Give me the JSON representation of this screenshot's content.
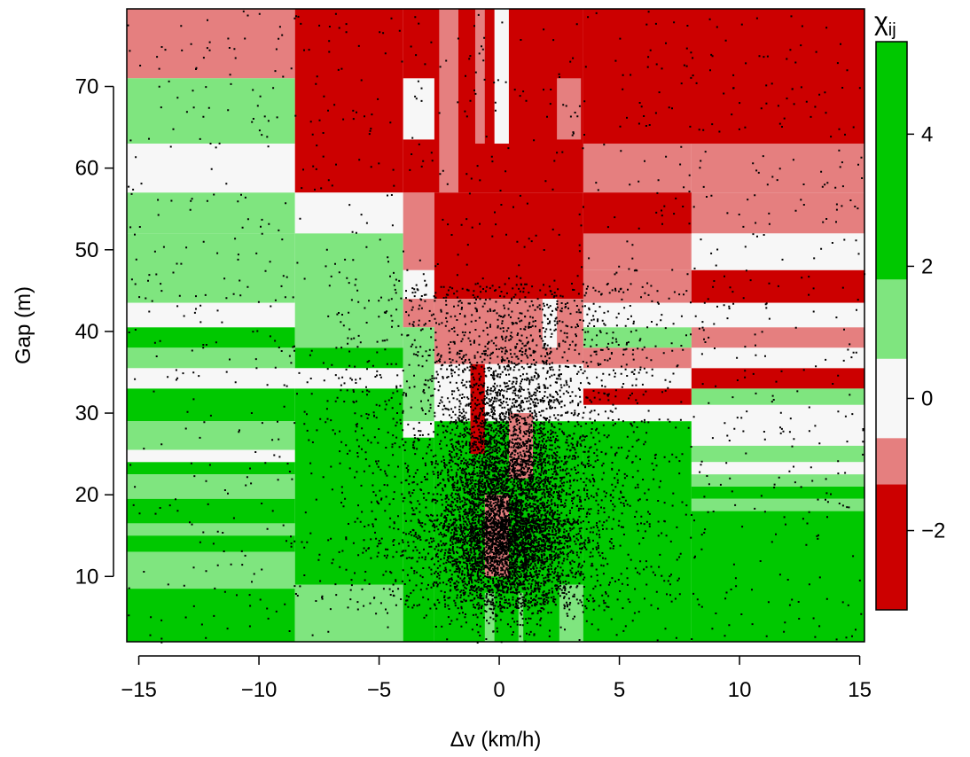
{
  "chart_data": {
    "type": "heatmap",
    "xlabel": "Δv (km/h)",
    "ylabel": "Gap (m)",
    "xlim": [
      -15.5,
      15.2
    ],
    "ylim": [
      2.0,
      79.5
    ],
    "x_ticks": [
      -15,
      -10,
      -5,
      0,
      5,
      10,
      15
    ],
    "x_tick_labels": [
      "−15",
      "−10",
      "−5",
      "0",
      "5",
      "10",
      "15"
    ],
    "y_ticks": [
      10,
      20,
      30,
      40,
      50,
      60,
      70
    ],
    "y_tick_labels": [
      "10",
      "20",
      "30",
      "40",
      "50",
      "60",
      "70"
    ],
    "legend": {
      "title": "χij",
      "title_main": "χ",
      "title_sub": "ij",
      "placement": "right",
      "ticks": [
        -2,
        0,
        2,
        4
      ],
      "tick_labels": [
        "−2",
        "0",
        "2",
        "4"
      ],
      "range": [
        -3.2,
        5.4
      ],
      "bands": [
        {
          "from": -3.2,
          "to": -1.3,
          "color": "#cc0000"
        },
        {
          "from": -1.3,
          "to": -0.6,
          "color": "#e57f7f"
        },
        {
          "from": -0.6,
          "to": 0.6,
          "color": "#f7f7f7"
        },
        {
          "from": 0.6,
          "to": 1.8,
          "color": "#7fe57f"
        },
        {
          "from": 1.8,
          "to": 5.4,
          "color": "#00c800"
        }
      ]
    },
    "colors": {
      "dark_red": "#cc0000",
      "light_red": "#e57f7f",
      "white": "#f7f7f7",
      "light_green": "#7fe57f",
      "green": "#00c800",
      "points": "#000000"
    },
    "cells": [
      {
        "x": [
          -15.5,
          -8.5
        ],
        "y": [
          71.0,
          79.5
        ],
        "c": "light_red"
      },
      {
        "x": [
          -15.5,
          -8.5
        ],
        "y": [
          63.0,
          71.0
        ],
        "c": "light_green"
      },
      {
        "x": [
          -15.5,
          -8.5
        ],
        "y": [
          57.0,
          63.0
        ],
        "c": "white"
      },
      {
        "x": [
          -15.5,
          -8.5
        ],
        "y": [
          52.0,
          57.0
        ],
        "c": "light_green"
      },
      {
        "x": [
          -15.5,
          -8.5
        ],
        "y": [
          43.5,
          52.0
        ],
        "c": "light_green"
      },
      {
        "x": [
          -15.5,
          -8.5
        ],
        "y": [
          40.5,
          43.5
        ],
        "c": "white"
      },
      {
        "x": [
          -15.5,
          -8.5
        ],
        "y": [
          38.0,
          40.5
        ],
        "c": "green"
      },
      {
        "x": [
          -15.5,
          -8.5
        ],
        "y": [
          35.5,
          38.0
        ],
        "c": "light_green"
      },
      {
        "x": [
          -15.5,
          -8.5
        ],
        "y": [
          33.0,
          35.5
        ],
        "c": "white"
      },
      {
        "x": [
          -15.5,
          -8.5
        ],
        "y": [
          29.0,
          33.0
        ],
        "c": "green"
      },
      {
        "x": [
          -15.5,
          -8.5
        ],
        "y": [
          25.5,
          29.0
        ],
        "c": "light_green"
      },
      {
        "x": [
          -15.5,
          -8.5
        ],
        "y": [
          24.0,
          25.5
        ],
        "c": "white"
      },
      {
        "x": [
          -15.5,
          -8.5
        ],
        "y": [
          22.5,
          24.0
        ],
        "c": "green"
      },
      {
        "x": [
          -15.5,
          -8.5
        ],
        "y": [
          19.5,
          22.5
        ],
        "c": "light_green"
      },
      {
        "x": [
          -15.5,
          -8.5
        ],
        "y": [
          16.5,
          19.5
        ],
        "c": "green"
      },
      {
        "x": [
          -15.5,
          -8.5
        ],
        "y": [
          15.0,
          16.5
        ],
        "c": "light_green"
      },
      {
        "x": [
          -15.5,
          -8.5
        ],
        "y": [
          13.0,
          15.0
        ],
        "c": "green"
      },
      {
        "x": [
          -15.5,
          -8.5
        ],
        "y": [
          8.5,
          13.0
        ],
        "c": "light_green"
      },
      {
        "x": [
          -15.5,
          -8.5
        ],
        "y": [
          2.0,
          8.5
        ],
        "c": "green"
      },
      {
        "x": [
          -8.5,
          -4.0
        ],
        "y": [
          57.0,
          79.5
        ],
        "c": "dark_red"
      },
      {
        "x": [
          -8.5,
          -4.0
        ],
        "y": [
          52.0,
          57.0
        ],
        "c": "white"
      },
      {
        "x": [
          -8.5,
          -4.0
        ],
        "y": [
          38.0,
          52.0
        ],
        "c": "light_green"
      },
      {
        "x": [
          -8.5,
          -4.0
        ],
        "y": [
          35.5,
          38.0
        ],
        "c": "green"
      },
      {
        "x": [
          -8.5,
          -4.0
        ],
        "y": [
          33.0,
          35.5
        ],
        "c": "white"
      },
      {
        "x": [
          -8.5,
          -4.0
        ],
        "y": [
          9.0,
          33.0
        ],
        "c": "green"
      },
      {
        "x": [
          -8.5,
          -4.0
        ],
        "y": [
          2.0,
          9.0
        ],
        "c": "light_green"
      },
      {
        "x": [
          -4.0,
          3.5
        ],
        "y": [
          57.0,
          79.5
        ],
        "c": "dark_red"
      },
      {
        "x": [
          -4.0,
          -2.7
        ],
        "y": [
          63.5,
          71.0
        ],
        "c": "white"
      },
      {
        "x": [
          -4.0,
          -2.7
        ],
        "y": [
          47.5,
          57.0
        ],
        "c": "light_red"
      },
      {
        "x": [
          -4.0,
          -2.7
        ],
        "y": [
          44.0,
          47.5
        ],
        "c": "white"
      },
      {
        "x": [
          -4.0,
          -2.7
        ],
        "y": [
          40.5,
          44.0
        ],
        "c": "light_red"
      },
      {
        "x": [
          -4.0,
          -2.7
        ],
        "y": [
          29.0,
          40.5
        ],
        "c": "light_green"
      },
      {
        "x": [
          -4.0,
          -2.7
        ],
        "y": [
          27.0,
          29.0
        ],
        "c": "white"
      },
      {
        "x": [
          -4.0,
          -2.7
        ],
        "y": [
          2.0,
          27.0
        ],
        "c": "green"
      },
      {
        "x": [
          -2.7,
          3.5
        ],
        "y": [
          44.0,
          57.0
        ],
        "c": "dark_red"
      },
      {
        "x": [
          -2.7,
          3.5
        ],
        "y": [
          36.0,
          44.0
        ],
        "c": "light_red"
      },
      {
        "x": [
          -2.7,
          3.5
        ],
        "y": [
          29.0,
          36.0
        ],
        "c": "white"
      },
      {
        "x": [
          -2.7,
          3.5
        ],
        "y": [
          2.0,
          29.0
        ],
        "c": "green"
      },
      {
        "x": [
          -2.5,
          -1.7
        ],
        "y": [
          57.0,
          79.5
        ],
        "c": "light_red"
      },
      {
        "x": [
          -1.0,
          -0.6
        ],
        "y": [
          63.0,
          79.5
        ],
        "c": "light_red"
      },
      {
        "x": [
          -0.2,
          0.4
        ],
        "y": [
          63.0,
          79.5
        ],
        "c": "white"
      },
      {
        "x": [
          2.4,
          3.4
        ],
        "y": [
          63.5,
          71.0
        ],
        "c": "light_red"
      },
      {
        "x": [
          -1.2,
          -0.6
        ],
        "y": [
          25.0,
          36.0
        ],
        "c": "dark_red"
      },
      {
        "x": [
          0.4,
          1.4
        ],
        "y": [
          22.0,
          30.0
        ],
        "c": "light_red"
      },
      {
        "x": [
          -0.6,
          0.4
        ],
        "y": [
          10.0,
          20.0
        ],
        "c": "light_red"
      },
      {
        "x": [
          1.8,
          2.4
        ],
        "y": [
          38.0,
          44.0
        ],
        "c": "white"
      },
      {
        "x": [
          -0.6,
          -0.2
        ],
        "y": [
          2.0,
          8.0
        ],
        "c": "light_green"
      },
      {
        "x": [
          0.8,
          1.0
        ],
        "y": [
          2.0,
          8.0
        ],
        "c": "light_green"
      },
      {
        "x": [
          2.5,
          3.5
        ],
        "y": [
          2.0,
          9.0
        ],
        "c": "light_green"
      },
      {
        "x": [
          3.5,
          15.2
        ],
        "y": [
          63.0,
          79.5
        ],
        "c": "dark_red"
      },
      {
        "x": [
          3.5,
          8.0
        ],
        "y": [
          47.5,
          63.0
        ],
        "c": "light_red"
      },
      {
        "x": [
          3.5,
          8.0
        ],
        "y": [
          52.0,
          57.0
        ],
        "c": "dark_red"
      },
      {
        "x": [
          3.5,
          8.0
        ],
        "y": [
          43.5,
          47.5
        ],
        "c": "light_red"
      },
      {
        "x": [
          3.5,
          8.0
        ],
        "y": [
          40.5,
          43.5
        ],
        "c": "white"
      },
      {
        "x": [
          3.5,
          8.0
        ],
        "y": [
          38.0,
          40.5
        ],
        "c": "light_green"
      },
      {
        "x": [
          3.5,
          8.0
        ],
        "y": [
          35.5,
          38.0
        ],
        "c": "light_red"
      },
      {
        "x": [
          3.5,
          8.0
        ],
        "y": [
          33.0,
          35.5
        ],
        "c": "white"
      },
      {
        "x": [
          3.5,
          8.0
        ],
        "y": [
          31.0,
          33.0
        ],
        "c": "dark_red"
      },
      {
        "x": [
          3.5,
          8.0
        ],
        "y": [
          29.0,
          31.0
        ],
        "c": "white"
      },
      {
        "x": [
          3.5,
          8.0
        ],
        "y": [
          2.0,
          29.0
        ],
        "c": "green"
      },
      {
        "x": [
          8.0,
          15.2
        ],
        "y": [
          57.0,
          63.0
        ],
        "c": "light_red"
      },
      {
        "x": [
          8.0,
          15.2
        ],
        "y": [
          52.0,
          57.0
        ],
        "c": "light_red"
      },
      {
        "x": [
          8.0,
          15.2
        ],
        "y": [
          47.5,
          52.0
        ],
        "c": "white"
      },
      {
        "x": [
          8.0,
          15.2
        ],
        "y": [
          43.5,
          47.5
        ],
        "c": "dark_red"
      },
      {
        "x": [
          8.0,
          15.2
        ],
        "y": [
          40.5,
          43.5
        ],
        "c": "white"
      },
      {
        "x": [
          8.0,
          15.2
        ],
        "y": [
          38.0,
          40.5
        ],
        "c": "light_red"
      },
      {
        "x": [
          8.0,
          15.2
        ],
        "y": [
          35.5,
          38.0
        ],
        "c": "white"
      },
      {
        "x": [
          8.0,
          15.2
        ],
        "y": [
          33.0,
          35.5
        ],
        "c": "dark_red"
      },
      {
        "x": [
          8.0,
          15.2
        ],
        "y": [
          31.0,
          33.0
        ],
        "c": "light_green"
      },
      {
        "x": [
          8.0,
          15.2
        ],
        "y": [
          26.0,
          31.0
        ],
        "c": "white"
      },
      {
        "x": [
          8.0,
          15.2
        ],
        "y": [
          24.0,
          26.0
        ],
        "c": "light_green"
      },
      {
        "x": [
          8.0,
          15.2
        ],
        "y": [
          22.5,
          24.0
        ],
        "c": "white"
      },
      {
        "x": [
          8.0,
          15.2
        ],
        "y": [
          21.0,
          22.5
        ],
        "c": "light_green"
      },
      {
        "x": [
          8.0,
          15.2
        ],
        "y": [
          19.5,
          21.0
        ],
        "c": "green"
      },
      {
        "x": [
          8.0,
          15.2
        ],
        "y": [
          18.0,
          19.5
        ],
        "c": "light_green"
      },
      {
        "x": [
          8.0,
          15.2
        ],
        "y": [
          2.0,
          18.0
        ],
        "c": "green"
      }
    ],
    "scatter": {
      "count": 9000,
      "mean": [
        0.3,
        20.0
      ],
      "description": "Black point cloud of individual (Δv, gap) observations; densest near Δv≈0 and gap 10–30 m, sparse elsewhere."
    }
  }
}
